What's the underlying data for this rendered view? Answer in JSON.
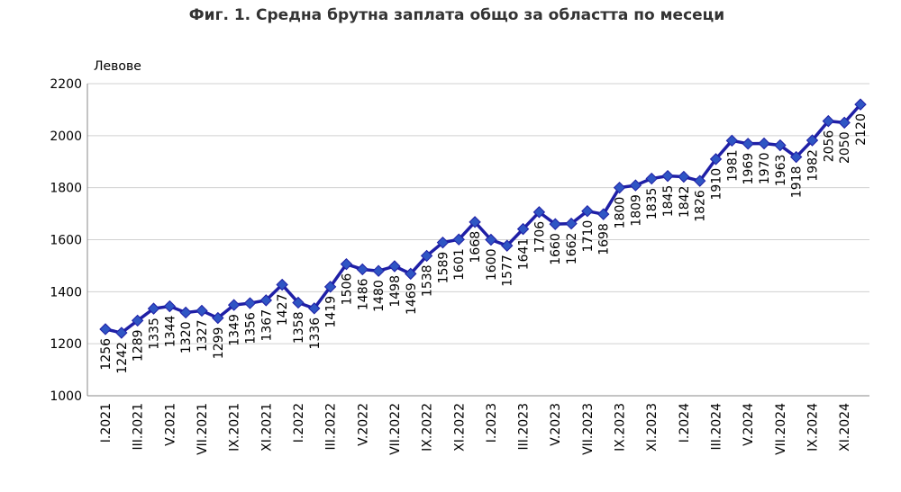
{
  "chart_data": {
    "type": "line",
    "title": "Фиг. 1. Средна брутна заплата общо за областта по месеци",
    "y_label": "Левове",
    "categories": [
      "I.2021",
      null,
      "III.2021",
      null,
      "V.2021",
      null,
      "VII.2021",
      null,
      "IX.2021",
      null,
      "XI.2021",
      null,
      "I.2022",
      null,
      "III.2022",
      null,
      "V.2022",
      null,
      "VII.2022",
      null,
      "IX.2022",
      null,
      "XI.2022",
      null,
      "I.2023",
      null,
      "III.2023",
      null,
      "V.2023",
      null,
      "VII.2023",
      null,
      "IX.2023",
      null,
      "XI.2023",
      null,
      "I.2024",
      null,
      "III.2024",
      null,
      "V.2024",
      null,
      "VII.2024",
      null,
      "IX.2024",
      null,
      "XI.2024",
      null
    ],
    "values": [
      1256,
      1242,
      1289,
      1335,
      1344,
      1320,
      1327,
      1299,
      1349,
      1356,
      1367,
      1427,
      1358,
      1336,
      1419,
      1506,
      1486,
      1480,
      1498,
      1469,
      1538,
      1589,
      1601,
      1668,
      1600,
      1577,
      1641,
      1706,
      1660,
      1662,
      1710,
      1698,
      1800,
      1809,
      1835,
      1845,
      1842,
      1826,
      1910,
      1981,
      1969,
      1970,
      1963,
      1918,
      1982,
      2056,
      2050,
      2120
    ],
    "color": "#1f1fa6",
    "marker_color": "#2f55c4",
    "ylim": [
      1000,
      2200
    ],
    "yticks": [
      1000,
      1200,
      1400,
      1600,
      1800,
      2000,
      2200
    ],
    "grid": true
  }
}
